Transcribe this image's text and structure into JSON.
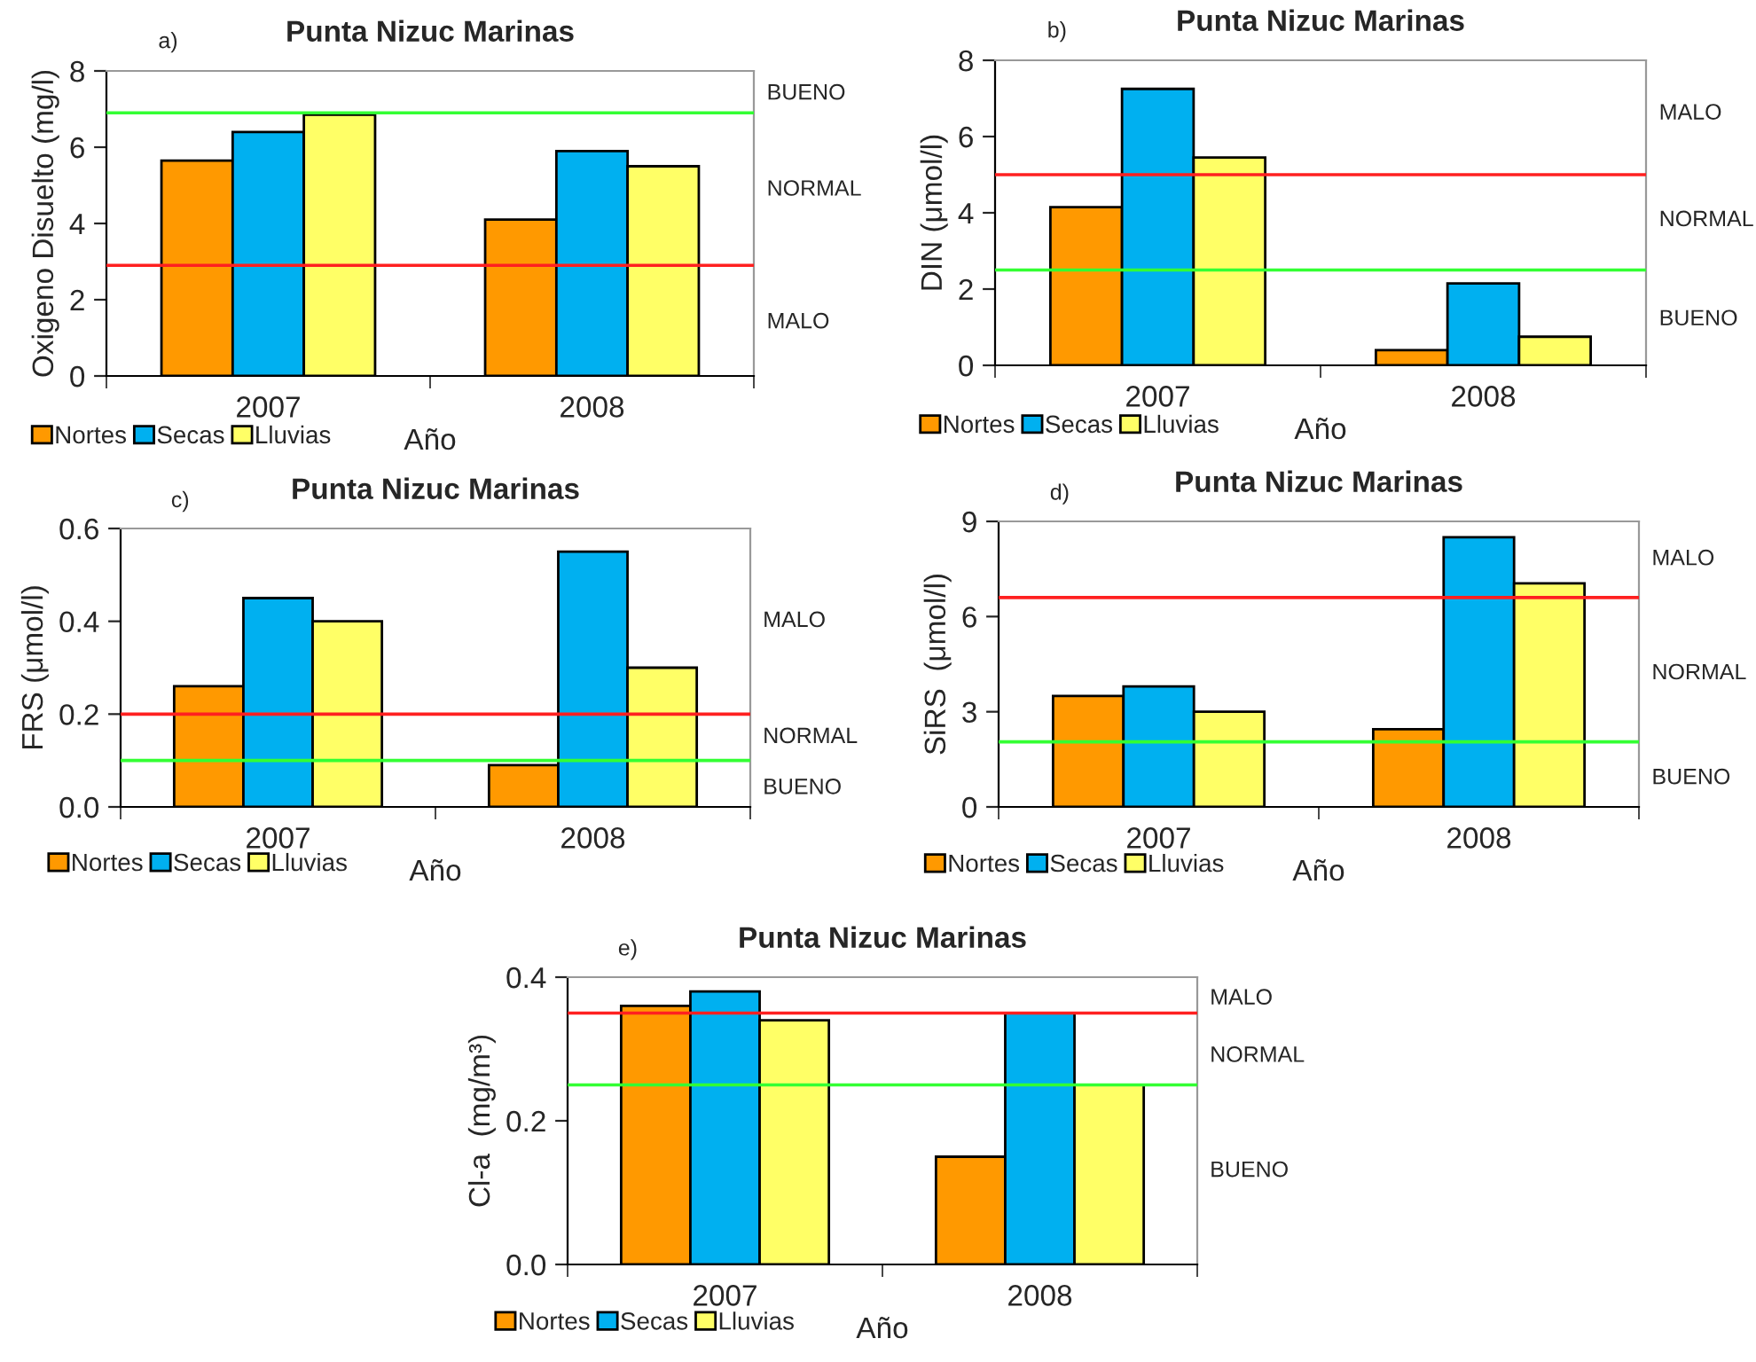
{
  "chart_data": [
    {
      "type": "bar",
      "title": "Punta Nizuc Marinas",
      "xlabel": "Año",
      "ylabel": "Oxigeno Disuelto (mg/l)",
      "categories": [
        "2007",
        "2008"
      ],
      "series": [
        {
          "name": "Nortes",
          "color": "#ff9900",
          "values": [
            5.65,
            4.1
          ]
        },
        {
          "name": "Secas",
          "color": "#00b0f0",
          "values": [
            6.4,
            5.9
          ]
        },
        {
          "name": "Lluvias",
          "color": "#ffff66",
          "values": [
            6.85,
            5.5
          ]
        }
      ],
      "ylim": [
        0,
        8
      ],
      "yticks": [
        0,
        2,
        4,
        6,
        8
      ],
      "grid": false,
      "legend": "bottom left",
      "ref_lines": [
        {
          "axis": "y",
          "value": 6.9,
          "color": "#33ff33"
        },
        {
          "axis": "y",
          "value": 2.9,
          "color": "#ff2020"
        }
      ],
      "annotations": [
        "a)",
        "BUENO",
        "NORMAL",
        "MALO"
      ]
    },
    {
      "type": "bar",
      "title": "Punta Nizuc Marinas",
      "xlabel": "Año",
      "ylabel": "DIN (μmol/l)",
      "categories": [
        "2007",
        "2008"
      ],
      "series": [
        {
          "name": "Nortes",
          "color": "#ff9900",
          "values": [
            4.15,
            0.4
          ]
        },
        {
          "name": "Secas",
          "color": "#00b0f0",
          "values": [
            7.25,
            2.15
          ]
        },
        {
          "name": "Lluvias",
          "color": "#ffff66",
          "values": [
            5.45,
            0.75
          ]
        }
      ],
      "ylim": [
        0,
        8
      ],
      "yticks": [
        0,
        2,
        4,
        6,
        8
      ],
      "grid": false,
      "legend": "bottom left",
      "ref_lines": [
        {
          "axis": "y",
          "value": 5.0,
          "color": "#ff2020"
        },
        {
          "axis": "y",
          "value": 2.5,
          "color": "#33ff33"
        }
      ],
      "annotations": [
        "b)",
        "MALO",
        "NORMAL",
        "BUENO"
      ]
    },
    {
      "type": "bar",
      "title": "Punta Nizuc Marinas",
      "xlabel": "Año",
      "ylabel": "FRS (μmol/l)",
      "categories": [
        "2007",
        "2008"
      ],
      "series": [
        {
          "name": "Nortes",
          "color": "#ff9900",
          "values": [
            0.26,
            0.09
          ]
        },
        {
          "name": "Secas",
          "color": "#00b0f0",
          "values": [
            0.45,
            0.55
          ]
        },
        {
          "name": "Lluvias",
          "color": "#ffff66",
          "values": [
            0.4,
            0.3
          ]
        }
      ],
      "ylim": [
        0,
        0.6
      ],
      "yticks": [
        {
          "value": 0,
          "label": "0.0"
        },
        0.2,
        0.4,
        0.6
      ],
      "grid": false,
      "legend": "bottom left",
      "ref_lines": [
        {
          "axis": "y",
          "value": 0.2,
          "color": "#ff2020"
        },
        {
          "axis": "y",
          "value": 0.1,
          "color": "#33ff33"
        }
      ],
      "annotations": [
        "c)",
        "MALO",
        "NORMAL",
        "BUENO"
      ]
    },
    {
      "type": "bar",
      "title": "Punta Nizuc Marinas",
      "xlabel": "Año",
      "ylabel": "SiRS  (μmol/l)",
      "categories": [
        "2007",
        "2008"
      ],
      "series": [
        {
          "name": "Nortes",
          "color": "#ff9900",
          "values": [
            3.5,
            2.45
          ]
        },
        {
          "name": "Secas",
          "color": "#00b0f0",
          "values": [
            3.8,
            8.5
          ]
        },
        {
          "name": "Lluvias",
          "color": "#ffff66",
          "values": [
            3.0,
            7.05
          ]
        }
      ],
      "ylim": [
        0,
        9
      ],
      "yticks": [
        0,
        3,
        6,
        9
      ],
      "grid": false,
      "legend": "bottom left",
      "ref_lines": [
        {
          "axis": "y",
          "value": 6.6,
          "color": "#ff2020"
        },
        {
          "axis": "y",
          "value": 2.05,
          "color": "#33ff33"
        }
      ],
      "annotations": [
        "d)",
        "MALO",
        "NORMAL",
        "BUENO"
      ]
    },
    {
      "type": "bar",
      "title": "Punta Nizuc Marinas",
      "xlabel": "Año",
      "ylabel": "Cl-a  (mg/m³)",
      "categories": [
        "2007",
        "2008"
      ],
      "series": [
        {
          "name": "Nortes",
          "color": "#ff9900",
          "values": [
            0.36,
            0.15
          ]
        },
        {
          "name": "Secas",
          "color": "#00b0f0",
          "values": [
            0.38,
            0.35
          ]
        },
        {
          "name": "Lluvias",
          "color": "#ffff66",
          "values": [
            0.34,
            0.25
          ]
        }
      ],
      "ylim": [
        0,
        0.4
      ],
      "yticks": [
        {
          "value": 0,
          "label": "0.0"
        },
        0.2,
        0.4
      ],
      "grid": false,
      "legend": "bottom left",
      "ref_lines": [
        {
          "axis": "y",
          "value": 0.35,
          "color": "#ff2020"
        },
        {
          "axis": "y",
          "value": 0.25,
          "color": "#33ff33"
        }
      ],
      "annotations": [
        "e)",
        "MALO",
        "NORMAL",
        "BUENO"
      ]
    }
  ]
}
